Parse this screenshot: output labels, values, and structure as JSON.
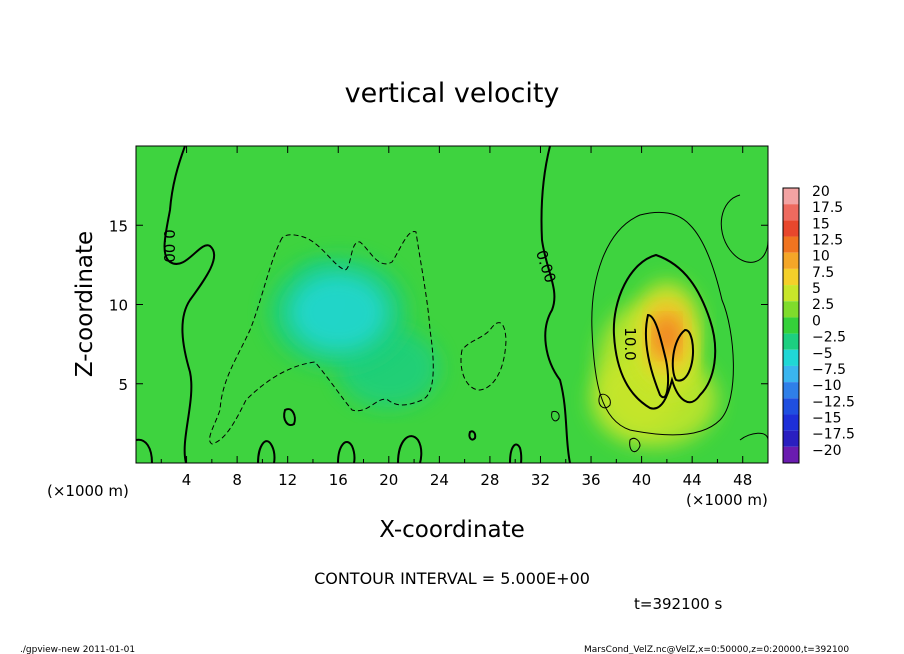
{
  "chart_data": {
    "type": "heatmap",
    "title": "vertical velocity",
    "xlabel": "X-coordinate",
    "ylabel": "Z-coordinate",
    "x_unit": "(×1000 m)",
    "xlim": [
      0,
      50
    ],
    "ylim": [
      0,
      20
    ],
    "x_ticks": [
      4,
      8,
      12,
      16,
      20,
      24,
      28,
      32,
      36,
      40,
      44,
      48
    ],
    "x_tick_labels": [
      "4",
      "8",
      "12",
      "16",
      "20",
      "24",
      "28",
      "32",
      "36",
      "40",
      "44",
      "48"
    ],
    "y_ticks": [
      5,
      10,
      15
    ],
    "y_tick_labels": [
      "5",
      "10",
      "15"
    ],
    "colorbar": {
      "levels": [
        20,
        17.5,
        15,
        12.5,
        10,
        7.5,
        5,
        2.5,
        0,
        -2.5,
        -5,
        -7.5,
        -10,
        -12.5,
        -15,
        -17.5,
        -20
      ],
      "labels": [
        "20",
        "17.5",
        "15",
        "12.5",
        "10",
        "7.5",
        "5",
        "2.5",
        "0",
        "−2.5",
        "−5",
        "−7.5",
        "−10",
        "−12.5",
        "−15",
        "−17.5",
        "−20"
      ],
      "colors": [
        "#f3a3a3",
        "#ee6a5f",
        "#e8472c",
        "#f07420",
        "#f4a628",
        "#f4d02a",
        "#c8e62a",
        "#7fdc2c",
        "#35d13a",
        "#1dcf80",
        "#20d7d6",
        "#3ab5ef",
        "#2f7fe8",
        "#1f4fe0",
        "#1d2fd8",
        "#2a1fc0",
        "#6a1cb0"
      ]
    },
    "contour_interval": 5.0,
    "contour_labels": [
      "0.00",
      "0.00",
      "10.0"
    ],
    "field_blobs": [
      {
        "x": 16,
        "z": 9.5,
        "value": -5,
        "sx": 5.5,
        "sz": 3.5
      },
      {
        "x": 14.5,
        "z": 10.5,
        "value": -3,
        "sx": 1.5,
        "sz": 2
      },
      {
        "x": 20,
        "z": 6,
        "value": -2.5,
        "sx": 4,
        "sz": 2.5
      },
      {
        "x": 27,
        "z": 7,
        "value": -1.5,
        "sx": 2,
        "sz": 2
      },
      {
        "x": 42,
        "z": 8,
        "value": 12,
        "sx": 2.8,
        "sz": 3.5
      },
      {
        "x": 43,
        "z": 7,
        "value": 4,
        "sx": 1.2,
        "sz": 1.5
      },
      {
        "x": 40,
        "z": 6,
        "value": 3,
        "sx": 3.5,
        "sz": 4
      },
      {
        "x": 41,
        "z": 4,
        "value": 3,
        "sx": 5,
        "sz": 3
      }
    ]
  },
  "texts": {
    "contour_interval_text": "CONTOUR INTERVAL = 5.000E+00",
    "time_text": "t=392100 s",
    "footer_left": "./gpview-new   2011-01-01",
    "footer_right": "MarsCond_VelZ.nc@VelZ,x=0:50000,z=0:20000,t=392100"
  },
  "colors": {
    "background_field": "#3ed33f"
  }
}
